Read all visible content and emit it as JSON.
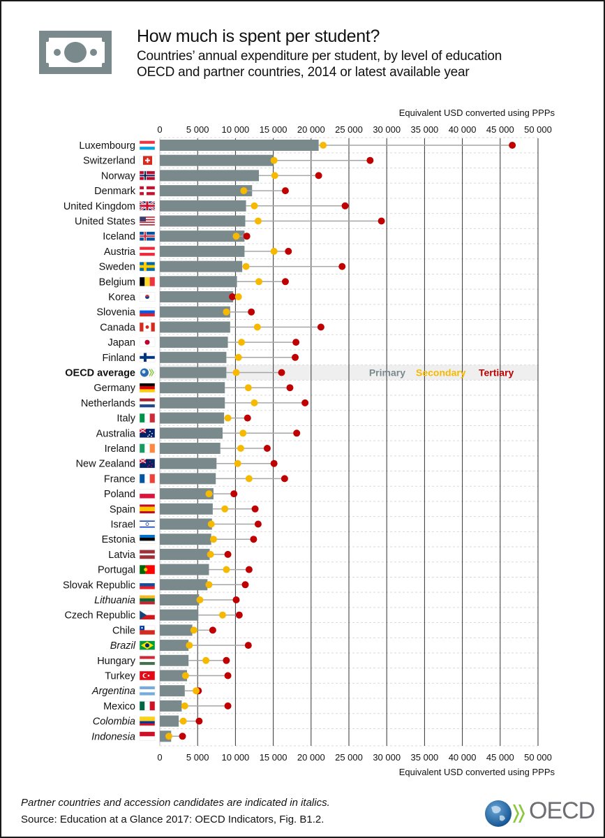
{
  "header": {
    "title": "How much is spent per student?",
    "subtitle_line1": "Countries’ annual expenditure per student, by level of education",
    "subtitle_line2": "OECD and partner countries, 2014 or latest available year",
    "icon": "money-bill-icon"
  },
  "footer": {
    "note": "Partner countries and accession candidates are indicated in italics.",
    "source": "Source: Education at a Glance 2017: OECD Indicators, Fig. B1.2.",
    "logo_text": "OECD"
  },
  "colors": {
    "primary": "#7a8a8c",
    "secondary": "#f7b900",
    "tertiary": "#c00000",
    "highlight_row": "#efefef"
  },
  "chart_data": {
    "type": "bar",
    "title": "How much is spent per student?",
    "xlabel": "Equivalent USD converted using PPPs",
    "ylabel": "",
    "xlim": [
      0,
      50000
    ],
    "xticks": [
      0,
      5000,
      10000,
      15000,
      20000,
      25000,
      30000,
      35000,
      40000,
      45000,
      50000
    ],
    "xtick_labels": [
      "0",
      "5 000",
      "10 000",
      "15 000",
      "20 000",
      "25 000",
      "30 000",
      "35 000",
      "40 000",
      "45 000",
      "50 000"
    ],
    "grid": true,
    "legend": {
      "placement": "inline in OECD average row, right",
      "entries": [
        "Primary",
        "Secondary",
        "Tertiary"
      ]
    },
    "series": [
      {
        "name": "Primary",
        "mark": "bar"
      },
      {
        "name": "Secondary",
        "mark": "dot"
      },
      {
        "name": "Tertiary",
        "mark": "dot"
      }
    ],
    "categories": [
      {
        "name": "Luxembourg",
        "flag": "luxembourg-flag",
        "italic": false,
        "primary": 21000,
        "secondary": 21600,
        "tertiary": 46600
      },
      {
        "name": "Switzerland",
        "flag": "switzerland-flag",
        "italic": false,
        "primary": 15000,
        "secondary": 15100,
        "tertiary": 27800
      },
      {
        "name": "Norway",
        "flag": "norway-flag",
        "italic": false,
        "primary": 13100,
        "secondary": 15200,
        "tertiary": 21000
      },
      {
        "name": "Denmark",
        "flag": "denmark-flag",
        "italic": false,
        "primary": 12200,
        "secondary": 11100,
        "tertiary": 16600
      },
      {
        "name": "United Kingdom",
        "flag": "uk-flag",
        "italic": false,
        "primary": 11400,
        "secondary": 12500,
        "tertiary": 24500
      },
      {
        "name": "United States",
        "flag": "us-flag",
        "italic": false,
        "primary": 11300,
        "secondary": 13000,
        "tertiary": 29300
      },
      {
        "name": "Iceland",
        "flag": "iceland-flag",
        "italic": false,
        "primary": 11200,
        "secondary": 10100,
        "tertiary": 11500
      },
      {
        "name": "Austria",
        "flag": "austria-flag",
        "italic": false,
        "primary": 11200,
        "secondary": 15100,
        "tertiary": 17000
      },
      {
        "name": "Sweden",
        "flag": "sweden-flag",
        "italic": false,
        "primary": 10900,
        "secondary": 11400,
        "tertiary": 24100
      },
      {
        "name": "Belgium",
        "flag": "belgium-flag",
        "italic": false,
        "primary": 10200,
        "secondary": 13100,
        "tertiary": 16600
      },
      {
        "name": "Korea",
        "flag": "korea-flag",
        "italic": false,
        "primary": 9700,
        "secondary": 10400,
        "tertiary": 9600
      },
      {
        "name": "Slovenia",
        "flag": "slovenia-flag",
        "italic": false,
        "primary": 9300,
        "secondary": 8800,
        "tertiary": 12100
      },
      {
        "name": "Canada",
        "flag": "canada-flag",
        "italic": false,
        "primary": 9300,
        "secondary": 12900,
        "tertiary": 21300
      },
      {
        "name": "Japan",
        "flag": "japan-flag",
        "italic": false,
        "primary": 9000,
        "secondary": 10800,
        "tertiary": 18000
      },
      {
        "name": "Finland",
        "flag": "finland-flag",
        "italic": false,
        "primary": 8800,
        "secondary": 10400,
        "tertiary": 17900
      },
      {
        "name": "OECD average",
        "flag": "oecd-logo",
        "italic": false,
        "bold": true,
        "highlight": true,
        "primary": 8800,
        "secondary": 10100,
        "tertiary": 16100
      },
      {
        "name": "Germany",
        "flag": "germany-flag",
        "italic": false,
        "primary": 8600,
        "secondary": 11700,
        "tertiary": 17200
      },
      {
        "name": "Netherlands",
        "flag": "netherlands-flag",
        "italic": false,
        "primary": 8600,
        "secondary": 12500,
        "tertiary": 19200
      },
      {
        "name": "Italy",
        "flag": "italy-flag",
        "italic": false,
        "primary": 8500,
        "secondary": 9000,
        "tertiary": 11600
      },
      {
        "name": "Australia",
        "flag": "australia-flag",
        "italic": false,
        "primary": 8300,
        "secondary": 11000,
        "tertiary": 18100
      },
      {
        "name": "Ireland",
        "flag": "ireland-flag",
        "italic": false,
        "primary": 8000,
        "secondary": 10700,
        "tertiary": 14200
      },
      {
        "name": "New Zealand",
        "flag": "new-zealand-flag",
        "italic": false,
        "primary": 7500,
        "secondary": 10300,
        "tertiary": 15100
      },
      {
        "name": "France",
        "flag": "france-flag",
        "italic": false,
        "primary": 7400,
        "secondary": 11800,
        "tertiary": 16500
      },
      {
        "name": "Poland",
        "flag": "poland-flag",
        "italic": false,
        "primary": 7100,
        "secondary": 6500,
        "tertiary": 9800
      },
      {
        "name": "Spain",
        "flag": "spain-flag",
        "italic": false,
        "primary": 7000,
        "secondary": 8600,
        "tertiary": 12600
      },
      {
        "name": "Israel",
        "flag": "israel-flag",
        "italic": false,
        "primary": 6900,
        "secondary": 6800,
        "tertiary": 13000
      },
      {
        "name": "Estonia",
        "flag": "estonia-flag",
        "italic": false,
        "primary": 6800,
        "secondary": 7100,
        "tertiary": 12400
      },
      {
        "name": "Latvia",
        "flag": "latvia-flag",
        "italic": false,
        "primary": 6600,
        "secondary": 6700,
        "tertiary": 9000
      },
      {
        "name": "Portugal",
        "flag": "portugal-flag",
        "italic": false,
        "primary": 6500,
        "secondary": 8800,
        "tertiary": 11800
      },
      {
        "name": "Slovak Republic",
        "flag": "slovakia-flag",
        "italic": false,
        "primary": 6300,
        "secondary": 6500,
        "tertiary": 11300
      },
      {
        "name": "Lithuania",
        "flag": "lithuania-flag",
        "italic": true,
        "primary": 5200,
        "secondary": 5300,
        "tertiary": 10100
      },
      {
        "name": "Czech Republic",
        "flag": "czech-flag",
        "italic": false,
        "primary": 5100,
        "secondary": 8300,
        "tertiary": 10500
      },
      {
        "name": "Chile",
        "flag": "chile-flag",
        "italic": false,
        "primary": 4300,
        "secondary": 4500,
        "tertiary": 7000
      },
      {
        "name": "Brazil",
        "flag": "brazil-flag",
        "italic": true,
        "primary": 3800,
        "secondary": 3900,
        "tertiary": 11700
      },
      {
        "name": "Hungary",
        "flag": "hungary-flag",
        "italic": false,
        "primary": 3800,
        "secondary": 6100,
        "tertiary": 8800
      },
      {
        "name": "Turkey",
        "flag": "turkey-flag",
        "italic": false,
        "primary": 3600,
        "secondary": 3400,
        "tertiary": 9000
      },
      {
        "name": "Argentina",
        "flag": "argentina-flag",
        "italic": true,
        "primary": 3300,
        "secondary": 4800,
        "tertiary": 5100
      },
      {
        "name": "Mexico",
        "flag": "mexico-flag",
        "italic": false,
        "primary": 2900,
        "secondary": 3300,
        "tertiary": 9000
      },
      {
        "name": "Colombia",
        "flag": "colombia-flag",
        "italic": true,
        "primary": 2500,
        "secondary": 3100,
        "tertiary": 5200
      },
      {
        "name": "Indonesia",
        "flag": "indonesia-flag",
        "italic": true,
        "primary": 1500,
        "secondary": 1200,
        "tertiary": 3000
      }
    ]
  }
}
